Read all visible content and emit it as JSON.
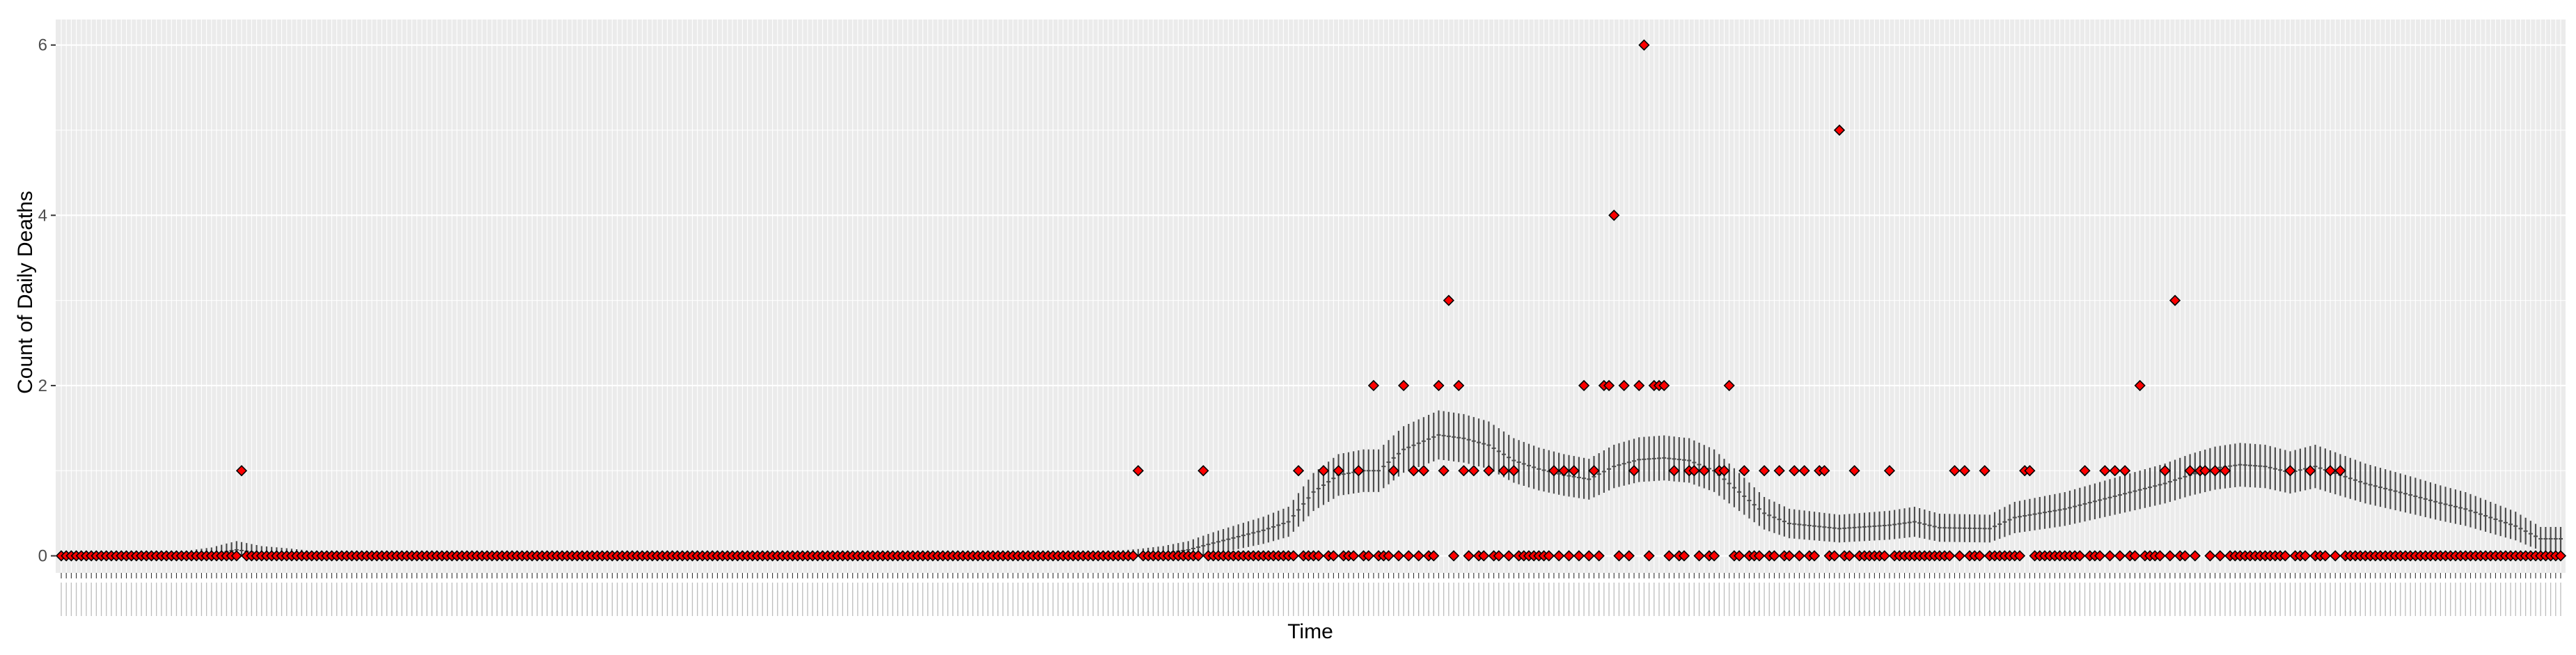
{
  "chart_data": {
    "type": "scatter",
    "title": "",
    "xlabel": "Time",
    "ylabel": "Count of Daily Deaths",
    "ylim": [
      -0.2,
      6.3
    ],
    "y_ticks": [
      "0",
      "2",
      "4",
      "6"
    ],
    "grid": true,
    "legend": "none",
    "n_days": 500,
    "observed_color": "#ff0000",
    "band_color": "#4d4d4d",
    "panel_color": "#ebebeb",
    "grid_color": "#ffffff",
    "expected_curve": [
      [
        0,
        0.0
      ],
      [
        25,
        0.0
      ],
      [
        30,
        0.02
      ],
      [
        35,
        0.07
      ],
      [
        40,
        0.03
      ],
      [
        50,
        0.0
      ],
      [
        210,
        0.0
      ],
      [
        215,
        0.01
      ],
      [
        220,
        0.03
      ],
      [
        225,
        0.07
      ],
      [
        230,
        0.15
      ],
      [
        240,
        0.3
      ],
      [
        245,
        0.4
      ],
      [
        250,
        0.75
      ],
      [
        255,
        0.95
      ],
      [
        260,
        1.0
      ],
      [
        263,
        1.0
      ],
      [
        268,
        1.25
      ],
      [
        275,
        1.42
      ],
      [
        280,
        1.38
      ],
      [
        285,
        1.3
      ],
      [
        290,
        1.12
      ],
      [
        295,
        1.02
      ],
      [
        300,
        0.95
      ],
      [
        305,
        0.9
      ],
      [
        310,
        1.05
      ],
      [
        315,
        1.13
      ],
      [
        320,
        1.15
      ],
      [
        325,
        1.12
      ],
      [
        330,
        1.0
      ],
      [
        335,
        0.75
      ],
      [
        340,
        0.5
      ],
      [
        345,
        0.38
      ],
      [
        355,
        0.32
      ],
      [
        365,
        0.36
      ],
      [
        370,
        0.4
      ],
      [
        375,
        0.33
      ],
      [
        385,
        0.32
      ],
      [
        390,
        0.45
      ],
      [
        400,
        0.55
      ],
      [
        410,
        0.7
      ],
      [
        420,
        0.85
      ],
      [
        425,
        0.95
      ],
      [
        430,
        1.03
      ],
      [
        435,
        1.07
      ],
      [
        440,
        1.05
      ],
      [
        445,
        0.98
      ],
      [
        450,
        1.05
      ],
      [
        455,
        0.95
      ],
      [
        460,
        0.85
      ],
      [
        470,
        0.7
      ],
      [
        475,
        0.62
      ],
      [
        480,
        0.55
      ],
      [
        485,
        0.45
      ],
      [
        490,
        0.35
      ],
      [
        495,
        0.2
      ],
      [
        500,
        0.2
      ]
    ],
    "observed_nonzero": [
      {
        "x": 36,
        "y": 1
      },
      {
        "x": 215,
        "y": 1
      },
      {
        "x": 228,
        "y": 1
      },
      {
        "x": 247,
        "y": 1
      },
      {
        "x": 252,
        "y": 1
      },
      {
        "x": 255,
        "y": 1
      },
      {
        "x": 259,
        "y": 1
      },
      {
        "x": 262,
        "y": 2
      },
      {
        "x": 266,
        "y": 1
      },
      {
        "x": 268,
        "y": 2
      },
      {
        "x": 270,
        "y": 1
      },
      {
        "x": 272,
        "y": 1
      },
      {
        "x": 275,
        "y": 2
      },
      {
        "x": 276,
        "y": 1
      },
      {
        "x": 277,
        "y": 3
      },
      {
        "x": 279,
        "y": 2
      },
      {
        "x": 280,
        "y": 1
      },
      {
        "x": 282,
        "y": 1
      },
      {
        "x": 285,
        "y": 1
      },
      {
        "x": 288,
        "y": 1
      },
      {
        "x": 290,
        "y": 1
      },
      {
        "x": 298,
        "y": 1
      },
      {
        "x": 300,
        "y": 1
      },
      {
        "x": 302,
        "y": 1
      },
      {
        "x": 304,
        "y": 2
      },
      {
        "x": 306,
        "y": 1
      },
      {
        "x": 308,
        "y": 2
      },
      {
        "x": 309,
        "y": 2
      },
      {
        "x": 310,
        "y": 4
      },
      {
        "x": 312,
        "y": 2
      },
      {
        "x": 314,
        "y": 1
      },
      {
        "x": 315,
        "y": 2
      },
      {
        "x": 316,
        "y": 6
      },
      {
        "x": 318,
        "y": 2
      },
      {
        "x": 319,
        "y": 2
      },
      {
        "x": 320,
        "y": 2
      },
      {
        "x": 322,
        "y": 1
      },
      {
        "x": 325,
        "y": 1
      },
      {
        "x": 326,
        "y": 1
      },
      {
        "x": 328,
        "y": 1
      },
      {
        "x": 331,
        "y": 1
      },
      {
        "x": 332,
        "y": 1
      },
      {
        "x": 333,
        "y": 2
      },
      {
        "x": 336,
        "y": 1
      },
      {
        "x": 340,
        "y": 1
      },
      {
        "x": 343,
        "y": 1
      },
      {
        "x": 346,
        "y": 1
      },
      {
        "x": 348,
        "y": 1
      },
      {
        "x": 351,
        "y": 1
      },
      {
        "x": 352,
        "y": 1
      },
      {
        "x": 355,
        "y": 5
      },
      {
        "x": 358,
        "y": 1
      },
      {
        "x": 365,
        "y": 1
      },
      {
        "x": 378,
        "y": 1
      },
      {
        "x": 380,
        "y": 1
      },
      {
        "x": 384,
        "y": 1
      },
      {
        "x": 392,
        "y": 1
      },
      {
        "x": 393,
        "y": 1
      },
      {
        "x": 404,
        "y": 1
      },
      {
        "x": 408,
        "y": 1
      },
      {
        "x": 410,
        "y": 1
      },
      {
        "x": 412,
        "y": 1
      },
      {
        "x": 415,
        "y": 2
      },
      {
        "x": 420,
        "y": 1
      },
      {
        "x": 422,
        "y": 3
      },
      {
        "x": 425,
        "y": 1
      },
      {
        "x": 427,
        "y": 1
      },
      {
        "x": 428,
        "y": 1
      },
      {
        "x": 430,
        "y": 1
      },
      {
        "x": 432,
        "y": 1
      },
      {
        "x": 445,
        "y": 1
      },
      {
        "x": 449,
        "y": 1
      },
      {
        "x": 453,
        "y": 1
      },
      {
        "x": 455,
        "y": 1
      }
    ]
  }
}
